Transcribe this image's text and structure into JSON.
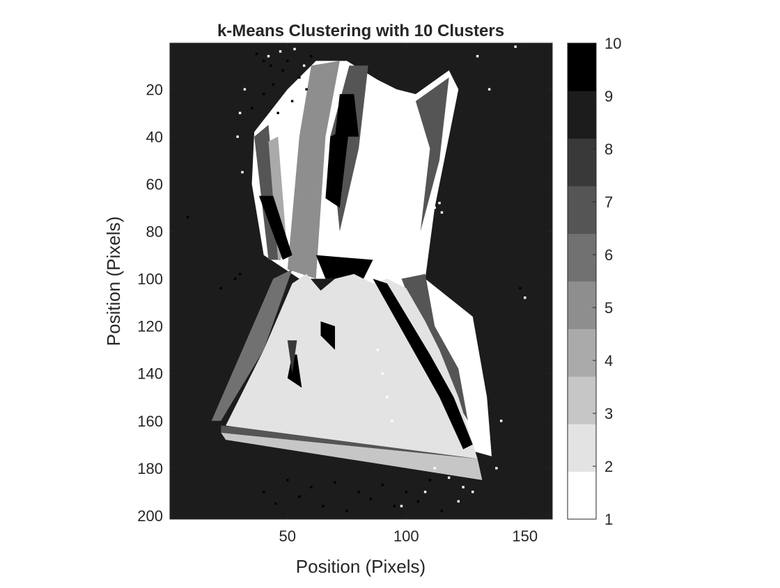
{
  "chart_data": {
    "type": "heatmap",
    "title": "k-Means Clustering with 10 Clusters",
    "xlabel": "Position (Pixels)",
    "ylabel": "Position (Pixels)",
    "xlim": [
      0.5,
      161.5
    ],
    "ylim": [
      0.5,
      201.5
    ],
    "y_reversed": true,
    "x_ticks": [
      50,
      100,
      150
    ],
    "y_ticks": [
      20,
      40,
      60,
      80,
      100,
      120,
      140,
      160,
      180,
      200
    ],
    "colorbar": {
      "levels": [
        1,
        2,
        3,
        4,
        5,
        6,
        7,
        8,
        9,
        10
      ],
      "tick_labels": [
        "1",
        "2",
        "3",
        "4",
        "5",
        "6",
        "7",
        "8",
        "9",
        "10"
      ],
      "colors": [
        "#ffffff",
        "#e3e3e3",
        "#c6c6c6",
        "#aaaaaa",
        "#8e8e8e",
        "#717171",
        "#555555",
        "#393939",
        "#1c1c1c",
        "#000000"
      ]
    },
    "background_cluster": 9,
    "regions": [
      {
        "cluster": 1,
        "points": [
          [
            40,
            90
          ],
          [
            35,
            60
          ],
          [
            36,
            38
          ],
          [
            50,
            20
          ],
          [
            62,
            8
          ],
          [
            75,
            8
          ],
          [
            88,
            16
          ],
          [
            96,
            20
          ],
          [
            104,
            22
          ],
          [
            118,
            12
          ],
          [
            122,
            20
          ],
          [
            118,
            40
          ],
          [
            112,
            70
          ],
          [
            108,
            100
          ],
          [
            128,
            116
          ],
          [
            134,
            150
          ],
          [
            136,
            175
          ],
          [
            118,
            170
          ],
          [
            100,
            120
          ],
          [
            90,
            108
          ],
          [
            72,
            100
          ],
          [
            55,
            100
          ]
        ]
      },
      {
        "cluster": 5,
        "points": [
          [
            60,
            10
          ],
          [
            72,
            8
          ],
          [
            66,
            40
          ],
          [
            62,
            100
          ],
          [
            50,
            96
          ],
          [
            55,
            40
          ]
        ]
      },
      {
        "cluster": 7,
        "points": [
          [
            76,
            10
          ],
          [
            84,
            10
          ],
          [
            80,
            45
          ],
          [
            72,
            80
          ],
          [
            68,
            40
          ]
        ]
      },
      {
        "cluster": 7,
        "points": [
          [
            104,
            25
          ],
          [
            118,
            15
          ],
          [
            114,
            50
          ],
          [
            106,
            80
          ],
          [
            110,
            45
          ]
        ]
      },
      {
        "cluster": 7,
        "points": [
          [
            36,
            40
          ],
          [
            42,
            35
          ],
          [
            47,
            92
          ],
          [
            42,
            92
          ]
        ]
      },
      {
        "cluster": 4,
        "points": [
          [
            42,
            42
          ],
          [
            46,
            40
          ],
          [
            50,
            90
          ],
          [
            46,
            92
          ]
        ]
      },
      {
        "cluster": 10,
        "points": [
          [
            38,
            65
          ],
          [
            44,
            65
          ],
          [
            52,
            90
          ],
          [
            48,
            92
          ]
        ]
      },
      {
        "cluster": 10,
        "points": [
          [
            68,
            40
          ],
          [
            76,
            36
          ],
          [
            72,
            70
          ],
          [
            66,
            66
          ]
        ]
      },
      {
        "cluster": 10,
        "points": [
          [
            72,
            22
          ],
          [
            78,
            22
          ],
          [
            80,
            40
          ],
          [
            70,
            40
          ]
        ]
      },
      {
        "cluster": 10,
        "points": [
          [
            62,
            90
          ],
          [
            86,
            92
          ],
          [
            82,
            100
          ],
          [
            66,
            100
          ]
        ]
      },
      {
        "cluster": 6,
        "points": [
          [
            44,
            100
          ],
          [
            52,
            96
          ],
          [
            40,
            130
          ],
          [
            22,
            160
          ],
          [
            18,
            160
          ]
        ]
      },
      {
        "cluster": 7,
        "points": [
          [
            98,
            100
          ],
          [
            108,
            98
          ],
          [
            112,
            120
          ],
          [
            122,
            138
          ],
          [
            126,
            160
          ],
          [
            120,
            150
          ],
          [
            110,
            130
          ]
        ]
      },
      {
        "cluster": 3,
        "points": [
          [
            22,
            165
          ],
          [
            130,
            176
          ],
          [
            132,
            185
          ],
          [
            24,
            168
          ]
        ]
      },
      {
        "cluster": 7,
        "points": [
          [
            22,
            162
          ],
          [
            128,
            172
          ],
          [
            130,
            176
          ],
          [
            22,
            165
          ]
        ]
      },
      {
        "cluster": 2,
        "points": [
          [
            52,
            102
          ],
          [
            58,
            98
          ],
          [
            64,
            105
          ],
          [
            70,
            100
          ],
          [
            78,
            98
          ],
          [
            86,
            102
          ],
          [
            92,
            100
          ],
          [
            100,
            104
          ],
          [
            108,
            118
          ],
          [
            114,
            130
          ],
          [
            122,
            150
          ],
          [
            130,
            176
          ],
          [
            24,
            162
          ],
          [
            30,
            150
          ],
          [
            40,
            130
          ]
        ]
      },
      {
        "cluster": 10,
        "points": [
          [
            86,
            100
          ],
          [
            92,
            102
          ],
          [
            110,
            132
          ],
          [
            120,
            150
          ],
          [
            128,
            170
          ],
          [
            124,
            172
          ],
          [
            114,
            150
          ],
          [
            100,
            125
          ]
        ]
      },
      {
        "cluster": 10,
        "points": [
          [
            64,
            118
          ],
          [
            70,
            120
          ],
          [
            70,
            130
          ],
          [
            64,
            124
          ]
        ]
      },
      {
        "cluster": 10,
        "points": [
          [
            52,
            132
          ],
          [
            54,
            132
          ],
          [
            56,
            146
          ],
          [
            50,
            142
          ]
        ]
      },
      {
        "cluster": 8,
        "points": [
          [
            50,
            126
          ],
          [
            54,
            126
          ],
          [
            52,
            140
          ]
        ]
      }
    ],
    "speckles": [
      {
        "cluster": 10,
        "points": [
          [
            37,
            5
          ],
          [
            40,
            8
          ],
          [
            43,
            10
          ],
          [
            48,
            12
          ],
          [
            55,
            15
          ],
          [
            58,
            20
          ],
          [
            60,
            6
          ],
          [
            52,
            25
          ],
          [
            46,
            30
          ],
          [
            40,
            22
          ],
          [
            35,
            28
          ],
          [
            44,
            18
          ],
          [
            50,
            8
          ]
        ]
      },
      {
        "cluster": 1,
        "points": [
          [
            32,
            20
          ],
          [
            30,
            30
          ],
          [
            29,
            40
          ],
          [
            31,
            55
          ],
          [
            42,
            6
          ],
          [
            47,
            4
          ],
          [
            53,
            3
          ],
          [
            57,
            10
          ]
        ]
      },
      {
        "cluster": 10,
        "points": [
          [
            28,
            100
          ],
          [
            30,
            98
          ],
          [
            22,
            104
          ],
          [
            8,
            74
          ],
          [
            148,
            104
          ],
          [
            40,
            190
          ],
          [
            45,
            195
          ],
          [
            50,
            185
          ],
          [
            55,
            192
          ],
          [
            60,
            188
          ],
          [
            65,
            196
          ],
          [
            70,
            186
          ],
          [
            75,
            198
          ],
          [
            80,
            190
          ],
          [
            85,
            193
          ],
          [
            90,
            187
          ],
          [
            95,
            196
          ],
          [
            100,
            190
          ],
          [
            105,
            194
          ],
          [
            110,
            185
          ],
          [
            115,
            198
          ]
        ]
      },
      {
        "cluster": 1,
        "points": [
          [
            140,
            160
          ],
          [
            132,
            168
          ],
          [
            138,
            180
          ],
          [
            128,
            190
          ],
          [
            118,
            184
          ],
          [
            122,
            194
          ],
          [
            112,
            180
          ],
          [
            150,
            108
          ],
          [
            146,
            2
          ],
          [
            130,
            6
          ],
          [
            135,
            20
          ],
          [
            124,
            188
          ],
          [
            108,
            190
          ],
          [
            98,
            196
          ]
        ]
      },
      {
        "cluster": 1,
        "points": [
          [
            112,
            70
          ],
          [
            114,
            68
          ],
          [
            115,
            72
          ],
          [
            88,
            130
          ],
          [
            90,
            140
          ],
          [
            92,
            150
          ],
          [
            94,
            160
          ]
        ]
      }
    ]
  }
}
